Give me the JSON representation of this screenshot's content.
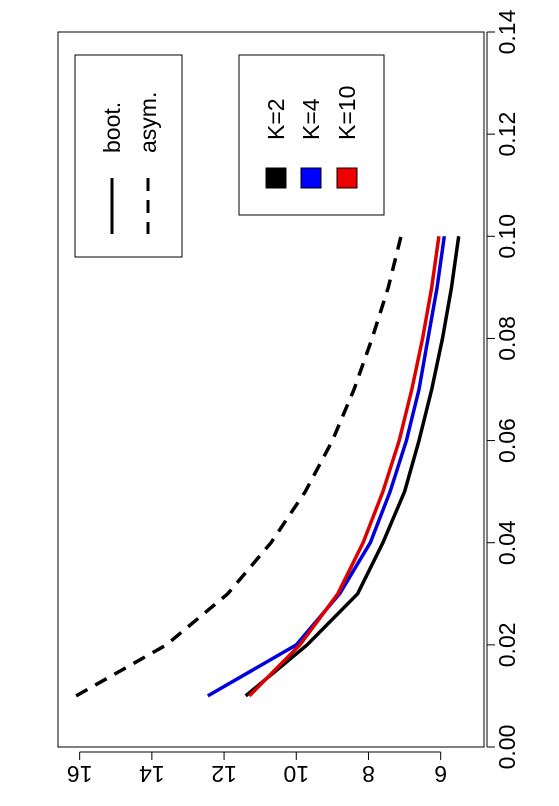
{
  "chart_data": {
    "type": "line",
    "orientation": "rotated-90-clockwise",
    "xlim": [
      0,
      0.14
    ],
    "ylim": [
      4.8,
      16.6
    ],
    "x_ticks": [
      0.0,
      0.02,
      0.04,
      0.06,
      0.08,
      0.1,
      0.12,
      0.14
    ],
    "x_tick_labels": [
      "0.00",
      "0.02",
      "0.04",
      "0.06",
      "0.08",
      "0.10",
      "0.12",
      "0.14"
    ],
    "y_ticks": [
      6,
      8,
      10,
      12,
      14,
      16
    ],
    "y_tick_labels": [
      "6",
      "8",
      "10",
      "12",
      "14",
      "16"
    ],
    "grid": false,
    "series": [
      {
        "name": "K=2",
        "method": "boot.",
        "color": "#000000",
        "dash": "solid",
        "x": [
          0.01,
          0.02,
          0.03,
          0.04,
          0.05,
          0.06,
          0.07,
          0.08,
          0.09,
          0.1
        ],
        "y": [
          11.4,
          9.7,
          8.3,
          7.6,
          7.0,
          6.6,
          6.25,
          5.95,
          5.7,
          5.5
        ]
      },
      {
        "color": "#0000dd",
        "dash": "solid",
        "x": [
          0.01,
          0.02,
          0.03,
          0.04,
          0.05,
          0.06,
          0.07,
          0.08,
          0.09,
          0.1
        ],
        "y": [
          12.45,
          10.0,
          8.8,
          7.95,
          7.4,
          6.95,
          6.6,
          6.35,
          6.1,
          5.9
        ]
      },
      {
        "color": "#dd0000",
        "dash": "solid",
        "x": [
          0.01,
          0.02,
          0.03,
          0.04,
          0.05,
          0.06,
          0.07,
          0.08,
          0.09,
          0.1
        ],
        "y": [
          11.3,
          9.9,
          8.85,
          8.15,
          7.6,
          7.15,
          6.8,
          6.5,
          6.25,
          6.05
        ]
      },
      {
        "color": "#000000",
        "dash": "dashed",
        "x": [
          0.01,
          0.02,
          0.03,
          0.04,
          0.05,
          0.06,
          0.07,
          0.08,
          0.09,
          0.1
        ],
        "y": [
          16.1,
          13.6,
          11.9,
          10.7,
          9.75,
          9.0,
          8.4,
          7.9,
          7.45,
          7.1
        ]
      }
    ],
    "legend_line_types": {
      "position": "top-right",
      "entries": [
        {
          "label": "boot.",
          "dash": "solid"
        },
        {
          "label": "asym.",
          "dash": "dashed"
        }
      ]
    },
    "legend_colors": {
      "position": "top-left",
      "entries": [
        {
          "label": "K=2",
          "color": "#000000"
        },
        {
          "label": "K=4",
          "color": "#0000ff"
        },
        {
          "label": "K=10",
          "color": "#ee0000"
        }
      ]
    }
  }
}
